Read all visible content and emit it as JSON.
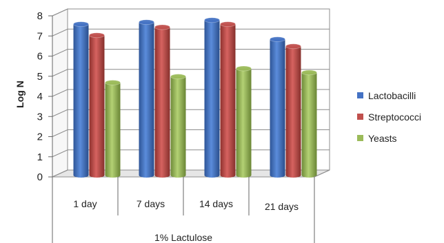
{
  "chart_data": {
    "type": "bar",
    "ylabel": "Log N",
    "ylim": [
      0,
      8
    ],
    "yticks": [
      0,
      1,
      2,
      3,
      4,
      5,
      6,
      7,
      8
    ],
    "grid": true,
    "legend_position": "right",
    "categories": [
      "1 day",
      "7 days",
      "14 days",
      "21 days"
    ],
    "group_label": "1% Lactulose",
    "series": [
      {
        "name": "Lactobacilli",
        "color": "#4472C4",
        "values": [
          7.5,
          7.6,
          7.7,
          6.75
        ]
      },
      {
        "name": "Streptococci",
        "color": "#C0504D",
        "values": [
          6.95,
          7.35,
          7.5,
          6.4
        ]
      },
      {
        "name": "Yeasts",
        "color": "#9BBB59",
        "values": [
          4.6,
          4.9,
          5.3,
          5.1
        ]
      }
    ]
  }
}
